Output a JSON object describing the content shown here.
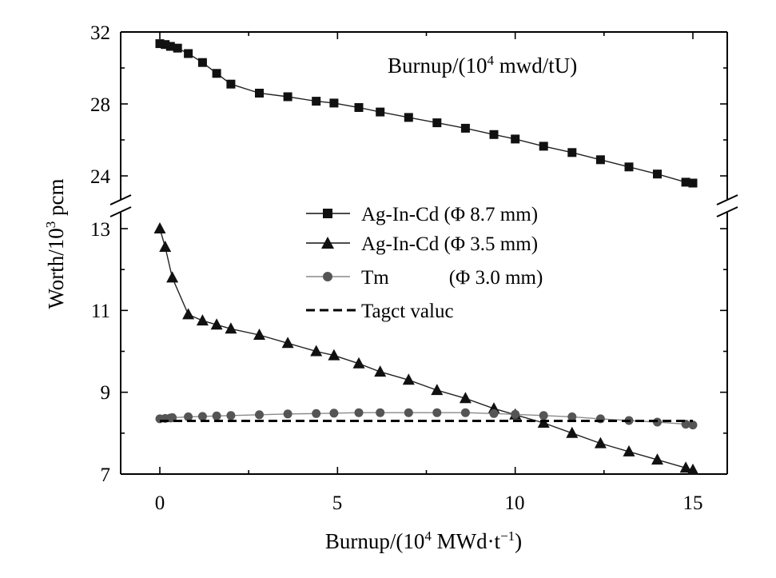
{
  "chart_data": {
    "type": "line",
    "xlabel": "Burnup/(10⁴ MWd·t⁻¹)",
    "ylabel": "Worth/10³ pcm",
    "annotation": "Burnup/(10⁴ mwd/tU)",
    "xlim": [
      -1,
      16
    ],
    "x_ticks": [
      "0",
      "5",
      "10",
      "15"
    ],
    "y_ticks_upper": [
      "24",
      "28",
      "32"
    ],
    "y_ticks_lower": [
      "7",
      "9",
      "11",
      "13"
    ],
    "ylim_upper": [
      23,
      32.4
    ],
    "ylim_lower": [
      7,
      13.4
    ],
    "axis_break": true,
    "legend_position": "center-left",
    "grid": false,
    "series": [
      {
        "name": "Ag-In-Cd (Φ 8.7 mm)",
        "marker": "square",
        "color": "#111111",
        "line_style": "solid",
        "x": [
          0,
          0.15,
          0.3,
          0.5,
          0.8,
          1.2,
          1.6,
          2.0,
          2.8,
          3.6,
          4.4,
          4.9,
          5.6,
          6.2,
          7.0,
          7.8,
          8.6,
          9.4,
          10.0,
          10.8,
          11.6,
          12.4,
          13.2,
          14.0,
          14.8,
          15.0
        ],
        "y": [
          31.35,
          31.3,
          31.2,
          31.1,
          30.8,
          30.3,
          29.7,
          29.1,
          28.6,
          28.4,
          28.15,
          28.05,
          27.8,
          27.55,
          27.25,
          26.95,
          26.65,
          26.3,
          26.05,
          25.65,
          25.3,
          24.9,
          24.5,
          24.1,
          23.65,
          23.6
        ]
      },
      {
        "name": "Ag-In-Cd (Φ 3.5 mm)",
        "marker": "triangle",
        "color": "#111111",
        "line_style": "solid",
        "x": [
          0,
          0.15,
          0.35,
          0.8,
          1.2,
          1.6,
          2.0,
          2.8,
          3.6,
          4.4,
          4.9,
          5.6,
          6.2,
          7.0,
          7.8,
          8.6,
          9.4,
          10.0,
          10.8,
          11.6,
          12.4,
          13.2,
          14.0,
          14.8,
          15.0
        ],
        "y": [
          13.0,
          12.55,
          11.8,
          10.9,
          10.75,
          10.65,
          10.55,
          10.4,
          10.2,
          10.0,
          9.9,
          9.7,
          9.5,
          9.3,
          9.05,
          8.85,
          8.6,
          8.45,
          8.25,
          8.0,
          7.75,
          7.55,
          7.35,
          7.15,
          7.1
        ]
      },
      {
        "name": "Tm            (Φ 3.0 mm)",
        "marker": "circle",
        "color": "#555555",
        "line_style": "solid",
        "x": [
          0,
          0.15,
          0.3,
          0.35,
          0.8,
          1.2,
          1.6,
          2.0,
          2.8,
          3.6,
          4.4,
          4.9,
          5.6,
          6.2,
          7.0,
          7.8,
          8.6,
          9.4,
          10.0,
          10.8,
          11.6,
          12.4,
          13.2,
          14.0,
          14.8,
          15.0
        ],
        "y": [
          8.35,
          8.36,
          8.37,
          8.38,
          8.4,
          8.41,
          8.42,
          8.43,
          8.45,
          8.47,
          8.48,
          8.49,
          8.5,
          8.5,
          8.5,
          8.5,
          8.5,
          8.48,
          8.46,
          8.43,
          8.4,
          8.35,
          8.31,
          8.27,
          8.22,
          8.2
        ]
      },
      {
        "name": "Tagct valuc",
        "marker": "none",
        "color": "#000000",
        "line_style": "dashed",
        "x": [
          0,
          15
        ],
        "y": [
          8.3,
          8.3
        ]
      }
    ]
  }
}
